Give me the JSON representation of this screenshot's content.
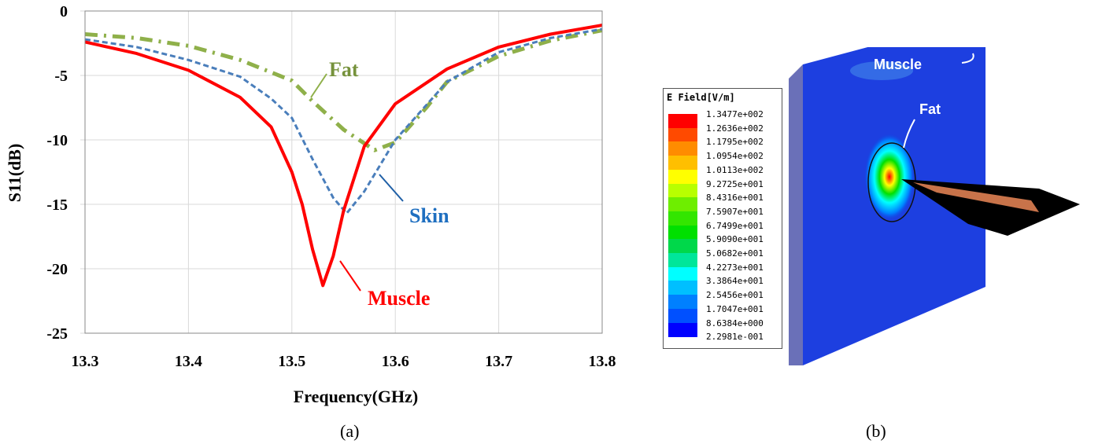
{
  "chart_data": {
    "type": "line",
    "xlabel": "Frequency(GHz)",
    "ylabel": "S11(dB)",
    "xlim": [
      13.3,
      13.8
    ],
    "ylim": [
      -25,
      0
    ],
    "xticks": [
      "13.3",
      "13.4",
      "13.5",
      "13.6",
      "13.7",
      "13.8"
    ],
    "yticks": [
      "0",
      "-5",
      "-10",
      "-15",
      "-20",
      "-25"
    ],
    "grid": true,
    "series": [
      {
        "name": "Muscle",
        "color": "#ff0000",
        "style": "solid",
        "x": [
          13.3,
          13.35,
          13.4,
          13.45,
          13.48,
          13.5,
          13.51,
          13.52,
          13.53,
          13.54,
          13.55,
          13.57,
          13.6,
          13.65,
          13.7,
          13.75,
          13.8
        ],
        "y": [
          -2.4,
          -3.3,
          -4.6,
          -6.7,
          -9,
          -12.5,
          -15,
          -18.5,
          -21.3,
          -19,
          -15.5,
          -10.5,
          -7.2,
          -4.5,
          -2.8,
          -1.8,
          -1.1
        ]
      },
      {
        "name": "Skin",
        "color": "#4a7ebb",
        "style": "dashed",
        "x": [
          13.3,
          13.35,
          13.4,
          13.45,
          13.48,
          13.5,
          13.52,
          13.54,
          13.553,
          13.57,
          13.6,
          13.65,
          13.7,
          13.75,
          13.8
        ],
        "y": [
          -2.2,
          -2.8,
          -3.8,
          -5.1,
          -6.8,
          -8.3,
          -11.5,
          -14.5,
          -15.7,
          -14,
          -10,
          -5.5,
          -3.2,
          -2.1,
          -1.4
        ]
      },
      {
        "name": "Fat",
        "color": "#8fb04a",
        "style": "dashdot",
        "x": [
          13.3,
          13.35,
          13.4,
          13.45,
          13.5,
          13.52,
          13.55,
          13.58,
          13.6,
          13.63,
          13.65,
          13.7,
          13.75,
          13.8
        ],
        "y": [
          -1.8,
          -2.1,
          -2.7,
          -3.8,
          -5.4,
          -7,
          -9.2,
          -10.8,
          -10.2,
          -7.5,
          -5.5,
          -3.5,
          -2.3,
          -1.5
        ]
      }
    ],
    "annotations": {
      "fat": "Fat",
      "skin": "Skin",
      "muscle": "Muscle"
    }
  },
  "captions": {
    "a": "(a)",
    "b": "(b)"
  },
  "field_plot": {
    "legend_title": "E Field[V/m]",
    "legend_values": [
      "1.3477e+002",
      "1.2636e+002",
      "1.1795e+002",
      "1.0954e+002",
      "1.0113e+002",
      "9.2725e+001",
      "8.4316e+001",
      "7.5907e+001",
      "6.7499e+001",
      "5.9090e+001",
      "5.0682e+001",
      "4.2273e+001",
      "3.3864e+001",
      "2.5456e+001",
      "1.7047e+001",
      "8.6384e+000",
      "2.2981e-001"
    ],
    "legend_colors": [
      "#ff0000",
      "#ff4a00",
      "#ff8c00",
      "#ffbf00",
      "#ffff00",
      "#b8ff00",
      "#6eee00",
      "#33e600",
      "#00e000",
      "#00d84a",
      "#00e69a",
      "#00ffff",
      "#00bfff",
      "#0080ff",
      "#0050ff",
      "#0000ff"
    ],
    "labels": {
      "muscle": "Muscle",
      "fat": "Fat"
    }
  }
}
